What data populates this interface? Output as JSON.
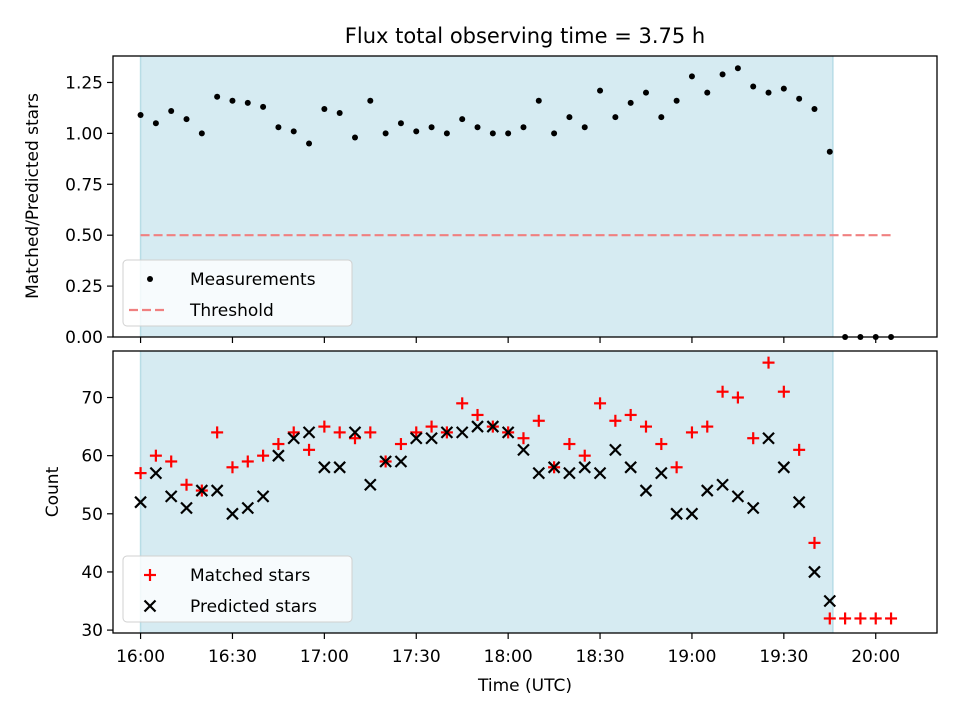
{
  "chart_data": {
    "title": "Flux total observing time = 3.75 h",
    "xlabel": "Time (UTC)",
    "x_ticks": [
      "16:00",
      "16:30",
      "17:00",
      "17:30",
      "18:00",
      "18:30",
      "19:00",
      "19:30",
      "20:00"
    ],
    "shaded_interval": [
      "16:00",
      "19:46"
    ],
    "x_times": [
      "16:00",
      "16:05",
      "16:10",
      "16:15",
      "16:20",
      "16:25",
      "16:30",
      "16:35",
      "16:40",
      "16:45",
      "16:50",
      "16:55",
      "17:00",
      "17:05",
      "17:10",
      "17:15",
      "17:20",
      "17:25",
      "17:30",
      "17:35",
      "17:40",
      "17:45",
      "17:50",
      "17:55",
      "18:00",
      "18:05",
      "18:10",
      "18:15",
      "18:20",
      "18:25",
      "18:30",
      "18:35",
      "18:40",
      "18:45",
      "18:50",
      "18:55",
      "19:00",
      "19:05",
      "19:10",
      "19:15",
      "19:20",
      "19:25",
      "19:30",
      "19:35",
      "19:40",
      "19:45",
      "19:50",
      "19:55",
      "20:00",
      "20:05"
    ],
    "panels": [
      {
        "type": "scatter",
        "ylabel": "Matched/Predicted stars",
        "ylim": [
          0,
          1.38
        ],
        "y_ticks": [
          "0.00",
          "0.25",
          "0.50",
          "0.75",
          "1.00",
          "1.25"
        ],
        "legend_position": "lower-left",
        "series": [
          {
            "name": "Measurements",
            "marker": "dot",
            "color": "#000000",
            "values": [
              1.09,
              1.05,
              1.11,
              1.07,
              1.0,
              1.18,
              1.16,
              1.15,
              1.13,
              1.03,
              1.01,
              0.95,
              1.12,
              1.1,
              0.98,
              1.16,
              1.0,
              1.05,
              1.01,
              1.03,
              1.0,
              1.07,
              1.03,
              1.0,
              1.0,
              1.03,
              1.16,
              1.0,
              1.08,
              1.03,
              1.21,
              1.08,
              1.15,
              1.2,
              1.08,
              1.16,
              1.28,
              1.2,
              1.29,
              1.32,
              1.23,
              1.2,
              1.22,
              1.17,
              1.12,
              0.91,
              0.0,
              0.0,
              0.0,
              0.0
            ]
          },
          {
            "name": "Threshold",
            "marker": "dashed-line",
            "color": "#f08080",
            "value": 0.5,
            "x_range": [
              "16:00",
              "20:05"
            ]
          }
        ]
      },
      {
        "type": "scatter",
        "ylabel": "Count",
        "ylim": [
          29.5,
          78
        ],
        "y_ticks": [
          "30",
          "40",
          "50",
          "60",
          "70"
        ],
        "legend_position": "lower-left",
        "series": [
          {
            "name": "Matched stars",
            "marker": "plus",
            "color": "#ff0000",
            "values": [
              57,
              60,
              59,
              55,
              54,
              64,
              58,
              59,
              60,
              62,
              64,
              61,
              65,
              64,
              63,
              64,
              59,
              62,
              64,
              65,
              64,
              69,
              67,
              65,
              64,
              63,
              66,
              58,
              62,
              60,
              69,
              66,
              67,
              65,
              62,
              58,
              64,
              65,
              71,
              70,
              63,
              76,
              71,
              61,
              45,
              32,
              32,
              32,
              32,
              32
            ]
          },
          {
            "name": "Predicted stars",
            "marker": "x",
            "color": "#000000",
            "values": [
              52,
              57,
              53,
              51,
              54,
              54,
              50,
              51,
              53,
              60,
              63,
              64,
              58,
              58,
              64,
              55,
              59,
              59,
              63,
              63,
              64,
              64,
              65,
              65,
              64,
              61,
              57,
              58,
              57,
              58,
              57,
              61,
              58,
              54,
              57,
              50,
              50,
              54,
              55,
              53,
              51,
              63,
              58,
              52,
              40,
              35,
              null,
              null,
              null,
              null
            ]
          }
        ]
      }
    ]
  }
}
